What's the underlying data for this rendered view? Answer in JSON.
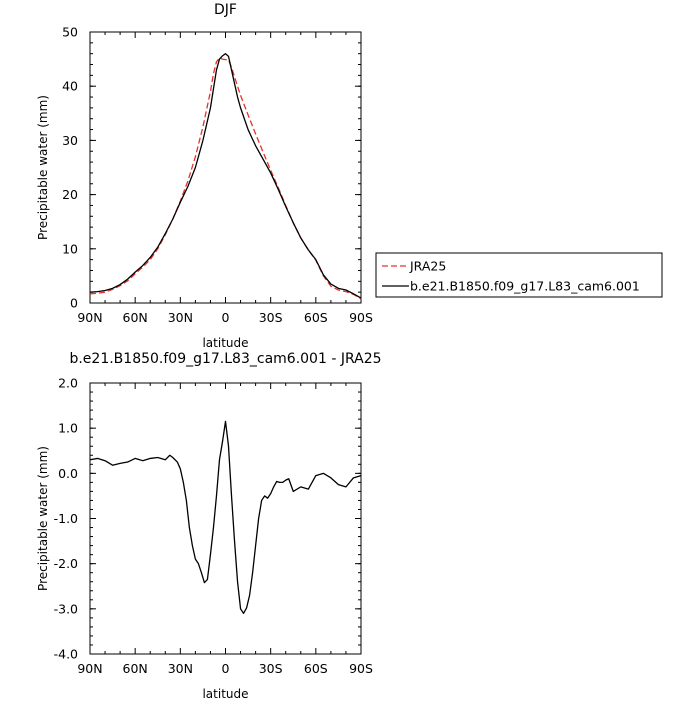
{
  "chart_data": [
    {
      "type": "line",
      "title": "DJF",
      "xlabel": "latitude",
      "ylabel": "Precipitable water (mm)",
      "xlim": [
        -90,
        90
      ],
      "ylim": [
        0,
        50
      ],
      "xtick_values": [
        -90,
        -60,
        -30,
        0,
        30,
        60,
        90
      ],
      "xtick_labels": [
        "90N",
        "60N",
        "30N",
        "0",
        "30S",
        "60S",
        "90S"
      ],
      "ytick_values": [
        0,
        10,
        20,
        30,
        40,
        50
      ],
      "ytick_labels": [
        "0",
        "10",
        "20",
        "30",
        "40",
        "50"
      ],
      "legend_position": "right",
      "series": [
        {
          "name": "JRA25",
          "color": "#e8302a",
          "dash": "dashed",
          "x": [
            -90,
            -85,
            -80,
            -75,
            -70,
            -65,
            -60,
            -55,
            -50,
            -45,
            -40,
            -35,
            -30,
            -25,
            -20,
            -15,
            -10,
            -8,
            -6,
            -4,
            -2,
            0,
            2,
            4,
            6,
            8,
            10,
            15,
            20,
            25,
            30,
            35,
            40,
            45,
            50,
            55,
            60,
            65,
            70,
            75,
            80,
            85,
            90
          ],
          "y": [
            1.7,
            1.8,
            2.0,
            2.5,
            3.2,
            4.1,
            5.4,
            6.6,
            8.0,
            10.0,
            12.6,
            15.5,
            18.8,
            22.5,
            27.0,
            32.5,
            39.0,
            42.3,
            44.5,
            45.2,
            45.0,
            44.9,
            44.8,
            43.5,
            41.7,
            40.0,
            38.3,
            34.7,
            31.2,
            27.8,
            24.5,
            21.3,
            18.0,
            14.8,
            12.0,
            9.8,
            7.9,
            5.0,
            3.1,
            2.4,
            2.1,
            1.6,
            0.8
          ]
        },
        {
          "name": "b.e21.B1850.f09_g17.L83_cam6.001",
          "color": "#000000",
          "dash": "solid",
          "x": [
            -90,
            -85,
            -80,
            -75,
            -70,
            -65,
            -60,
            -55,
            -50,
            -45,
            -40,
            -35,
            -30,
            -25,
            -20,
            -15,
            -10,
            -8,
            -6,
            -4,
            -2,
            0,
            2,
            4,
            6,
            8,
            10,
            15,
            20,
            25,
            30,
            35,
            40,
            45,
            50,
            55,
            60,
            65,
            70,
            75,
            80,
            85,
            90
          ],
          "y": [
            2.0,
            2.1,
            2.3,
            2.7,
            3.4,
            4.4,
            5.7,
            6.9,
            8.4,
            10.3,
            12.8,
            15.5,
            18.6,
            21.5,
            25.0,
            30.0,
            36.0,
            39.5,
            43.0,
            45.0,
            45.6,
            46.0,
            45.5,
            43.0,
            40.5,
            38.0,
            36.0,
            32.0,
            29.0,
            26.5,
            24.0,
            21.0,
            17.8,
            14.8,
            12.0,
            9.8,
            8.0,
            5.2,
            3.5,
            2.7,
            2.4,
            1.7,
            0.9
          ]
        }
      ]
    },
    {
      "type": "line",
      "title": "b.e21.B1850.f09_g17.L83_cam6.001 - JRA25",
      "xlabel": "latitude",
      "ylabel": "Precipitable water (mm)",
      "xlim": [
        -90,
        90
      ],
      "ylim": [
        -4.0,
        2.0
      ],
      "xtick_values": [
        -90,
        -60,
        -30,
        0,
        30,
        60,
        90
      ],
      "xtick_labels": [
        "90N",
        "60N",
        "30N",
        "0",
        "30S",
        "60S",
        "90S"
      ],
      "ytick_values": [
        -4,
        -3,
        -2,
        -1,
        0,
        1,
        2
      ],
      "ytick_labels": [
        "-4.0",
        "-3.0",
        "-2.0",
        "-1.0",
        "0.0",
        "1.0",
        "2.0"
      ],
      "series": [
        {
          "color": "#000000",
          "dash": "solid",
          "x": [
            -90,
            -85,
            -80,
            -75,
            -70,
            -65,
            -60,
            -57,
            -55,
            -50,
            -45,
            -40,
            -37,
            -35,
            -32,
            -30,
            -28,
            -26,
            -24,
            -22,
            -20,
            -18,
            -16,
            -14,
            -12,
            -10,
            -8,
            -6,
            -4,
            -2,
            0,
            2,
            4,
            6,
            8,
            10,
            12,
            14,
            16,
            18,
            20,
            22,
            24,
            26,
            28,
            30,
            32,
            34,
            36,
            38,
            40,
            42,
            45,
            50,
            55,
            60,
            65,
            70,
            75,
            80,
            85,
            90
          ],
          "y": [
            0.3,
            0.33,
            0.28,
            0.18,
            0.22,
            0.25,
            0.33,
            0.3,
            0.28,
            0.33,
            0.35,
            0.3,
            0.4,
            0.35,
            0.25,
            0.1,
            -0.2,
            -0.6,
            -1.2,
            -1.6,
            -1.9,
            -2.0,
            -2.2,
            -2.42,
            -2.35,
            -1.8,
            -1.2,
            -0.5,
            0.3,
            0.7,
            1.15,
            0.6,
            -0.5,
            -1.5,
            -2.4,
            -3.0,
            -3.1,
            -2.98,
            -2.7,
            -2.2,
            -1.6,
            -1.0,
            -0.6,
            -0.5,
            -0.55,
            -0.45,
            -0.3,
            -0.18,
            -0.2,
            -0.2,
            -0.15,
            -0.12,
            -0.4,
            -0.3,
            -0.35,
            -0.05,
            0.0,
            -0.1,
            -0.25,
            -0.3,
            -0.1,
            -0.05
          ]
        }
      ]
    }
  ]
}
